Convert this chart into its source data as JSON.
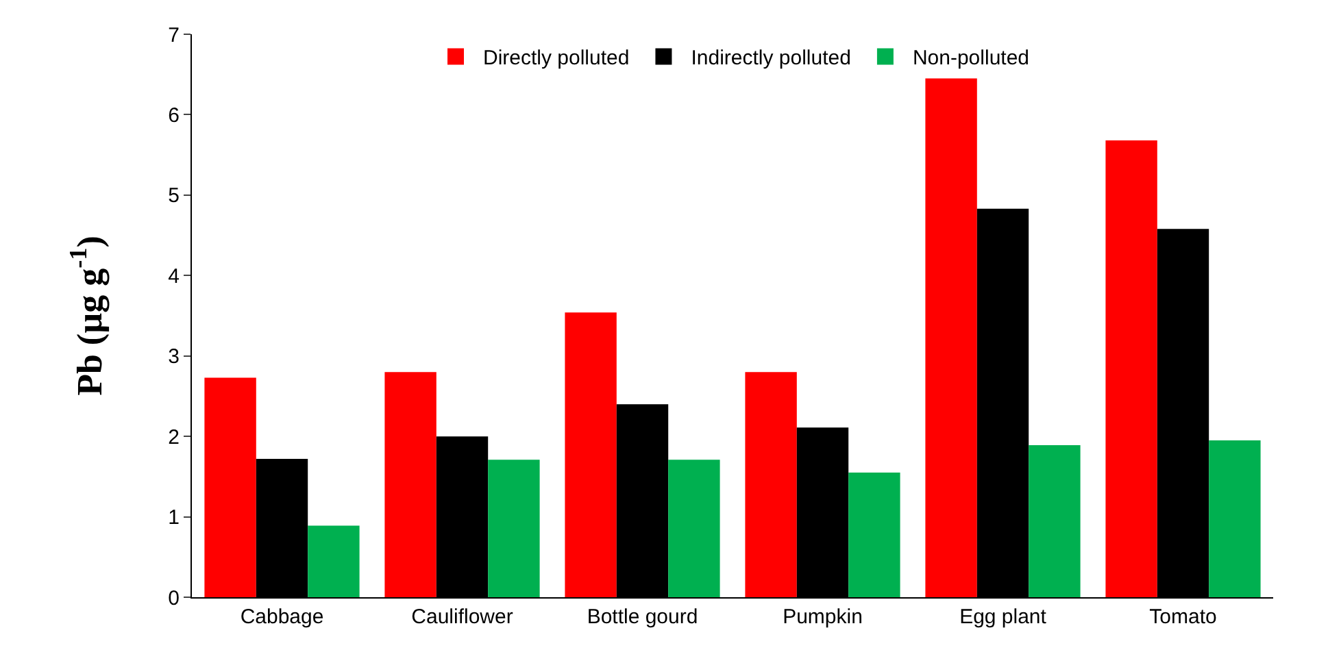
{
  "chart_data": {
    "type": "bar",
    "ylabel": "Pb (µg g$^{-1}$)",
    "categories": [
      "Cabbage",
      "Cauliflower",
      "Bottle gourd",
      "Pumpkin",
      "Egg plant",
      "Tomato"
    ],
    "series": [
      {
        "name": "Directly polluted",
        "color": "#ff0000",
        "values": [
          2.73,
          2.8,
          3.54,
          2.8,
          6.45,
          5.68
        ]
      },
      {
        "name": "Indirectly polluted",
        "color": "#000000",
        "values": [
          1.72,
          2.0,
          2.4,
          2.11,
          4.83,
          4.58
        ]
      },
      {
        "name": "Non-polluted",
        "color": "#00b050",
        "values": [
          0.89,
          1.71,
          1.71,
          1.55,
          1.89,
          1.95
        ]
      }
    ],
    "ylim": [
      0,
      7
    ],
    "yticks": [
      0,
      1,
      2,
      3,
      4,
      5,
      6,
      7
    ],
    "grid": false,
    "legend": "top"
  }
}
